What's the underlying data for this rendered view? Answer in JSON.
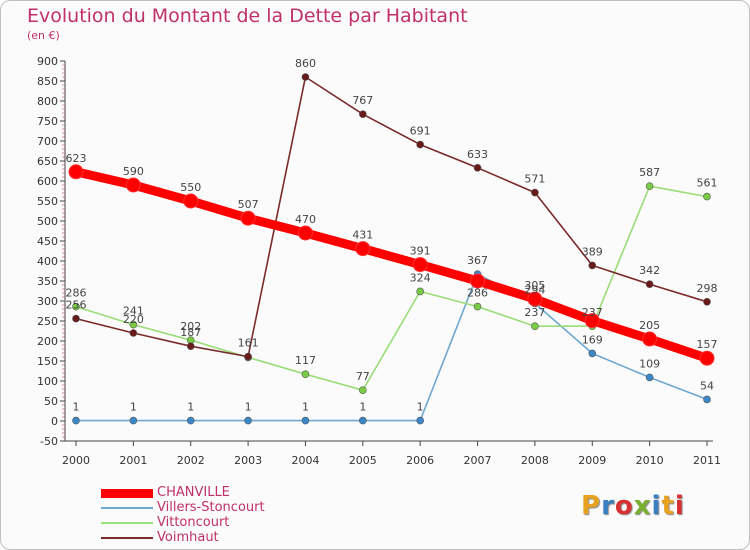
{
  "title": "Evolution du Montant de la Dette par Habitant",
  "subtitle": "(en €)",
  "logo": {
    "text": "Proxiti",
    "letter_colors": [
      "#e8a020",
      "#3a7fc0",
      "#d83030",
      "#7ab030",
      "#3a7fc0",
      "#e8a020",
      "#d83030"
    ]
  },
  "chart_data": {
    "type": "line",
    "x": [
      "2000",
      "2001",
      "2002",
      "2003",
      "2004",
      "2005",
      "2006",
      "2007",
      "2008",
      "2009",
      "2010",
      "2011"
    ],
    "ylim": [
      -50,
      900
    ],
    "yticks": [
      "900",
      "850",
      "800",
      "750",
      "700",
      "650",
      "600",
      "550",
      "500",
      "450",
      "400",
      "350",
      "300",
      "250",
      "200",
      "150",
      "100",
      "50",
      "0",
      "-50"
    ],
    "grid": false,
    "legend_position": "bottom-left",
    "series": [
      {
        "name": "CHANVILLE",
        "color": "#ff0000",
        "point_color": "#ff0000",
        "emphasis": true,
        "values": [
          623,
          590,
          550,
          507,
          470,
          431,
          391,
          350,
          305,
          251,
          205,
          157
        ],
        "labels": [
          "623",
          "590",
          "550",
          "507",
          "470",
          "431",
          "391",
          "",
          "305",
          "",
          "205",
          "157"
        ]
      },
      {
        "name": "Villers-Stoncourt",
        "color": "#6fa8d0",
        "point_color": "#3a88c8",
        "emphasis": false,
        "values": [
          1,
          1,
          1,
          1,
          1,
          1,
          1,
          367,
          294,
          169,
          109,
          54
        ],
        "labels": [
          "1",
          "1",
          "1",
          "1",
          "1",
          "1",
          "1",
          "367",
          "294",
          "169",
          "109",
          "54"
        ]
      },
      {
        "name": "Vittoncourt",
        "color": "#99dd77",
        "point_color": "#77cc44",
        "emphasis": false,
        "values": [
          286,
          241,
          202,
          159,
          117,
          77,
          324,
          286,
          237,
          237,
          587,
          561
        ],
        "labels": [
          "286",
          "241",
          "202",
          "",
          "117",
          "77",
          "324",
          "286",
          "237",
          "237",
          "587",
          "561"
        ]
      },
      {
        "name": "Voimhaut",
        "color": "#7a2a2a",
        "point_color": "#6a1a1a",
        "emphasis": false,
        "values": [
          256,
          220,
          187,
          161,
          860,
          767,
          691,
          633,
          571,
          389,
          342,
          298
        ],
        "labels": [
          "256",
          "220",
          "187",
          "161",
          "860",
          "767",
          "691",
          "633",
          "571",
          "389",
          "342",
          "298"
        ]
      }
    ]
  }
}
